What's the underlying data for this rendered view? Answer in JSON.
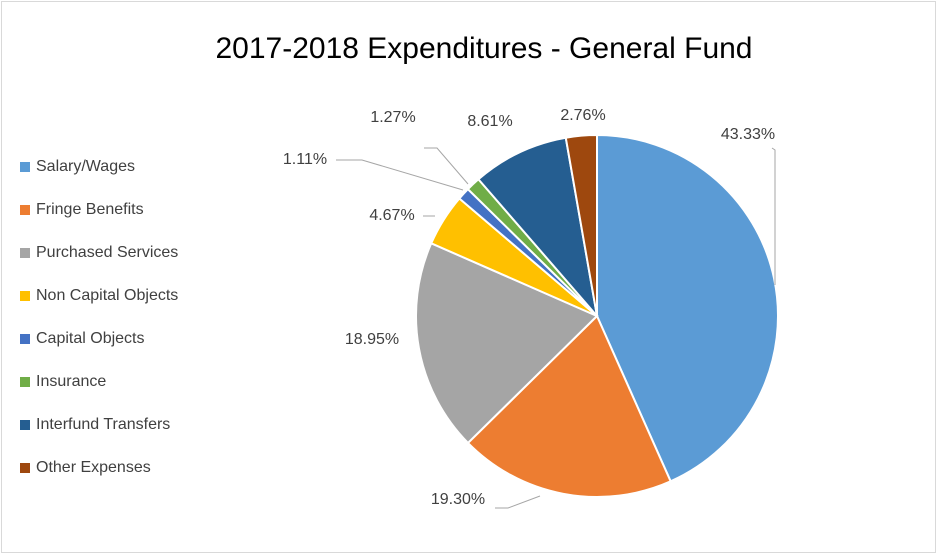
{
  "chart_data": {
    "type": "pie",
    "title": "2017-2018 Expenditures - General Fund",
    "categories": [
      "Salary/Wages",
      "Fringe Benefits",
      "Purchased Services",
      "Non Capital Objects",
      "Capital Objects",
      "Insurance",
      "Interfund Transfers",
      "Other Expenses"
    ],
    "values": [
      43.33,
      19.3,
      18.95,
      4.67,
      1.11,
      1.27,
      8.61,
      2.76
    ],
    "value_labels": [
      "43.33%",
      "19.30%",
      "18.95%",
      "4.67%",
      "1.11%",
      "1.27%",
      "8.61%",
      "2.76%"
    ],
    "colors": [
      "#5b9bd5",
      "#ed7d31",
      "#a5a5a5",
      "#ffc000",
      "#4472c4",
      "#70ad47",
      "#255e91",
      "#9e480e"
    ],
    "legend": "left"
  }
}
